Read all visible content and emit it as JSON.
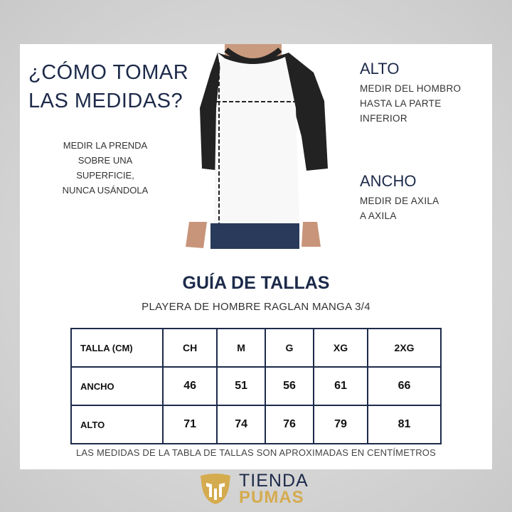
{
  "header": {
    "question": "¿CÓMO TOMAR LAS MEDIDAS?",
    "question_line1": "¿CÓMO TOMAR",
    "question_line2": "LAS MEDIDAS?",
    "instruction_lines": [
      "MEDIR LA PRENDA",
      "SOBRE UNA",
      "SUPERFICIE,",
      "NUNCA USÁNDOLA"
    ]
  },
  "alto": {
    "title": "ALTO",
    "lines": [
      "MEDIR DEL HOMBRO",
      "HASTA LA PARTE",
      "INFERIOR"
    ]
  },
  "ancho": {
    "title": "ANCHO",
    "lines": [
      "MEDIR DE AXILA",
      "A AXILA"
    ]
  },
  "guide": {
    "title": "GUÍA DE TALLAS",
    "subtitle": "PLAYERA DE HOMBRE RAGLAN MANGA 3/4",
    "headers": [
      "TALLA (CM)",
      "CH",
      "M",
      "G",
      "XG",
      "2XG"
    ],
    "rows": [
      {
        "label": "ANCHO",
        "values": [
          "46",
          "51",
          "56",
          "61",
          "66"
        ]
      },
      {
        "label": "ALTO",
        "values": [
          "71",
          "74",
          "76",
          "79",
          "81"
        ]
      }
    ],
    "note": "LAS MEDIDAS DE LA TABLA DE TALLAS SON APROXIMADAS EN CENTÍMETROS"
  },
  "logo": {
    "line1": "TIENDA",
    "line2": "PUMAS",
    "icon": "puma-head-icon"
  },
  "colors": {
    "navy": "#1d2a4a",
    "gold": "#d4ab4e"
  }
}
